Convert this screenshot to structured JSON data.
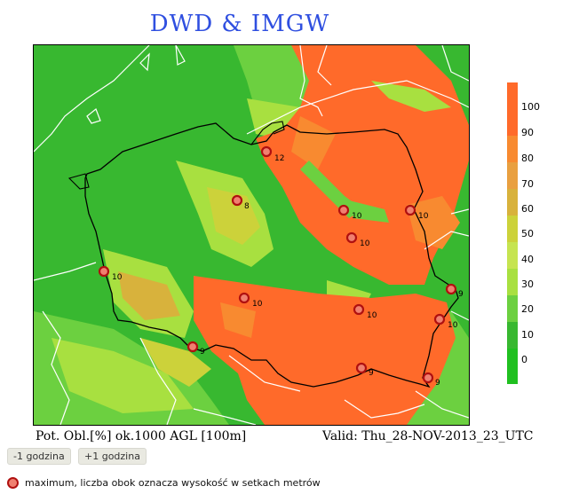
{
  "header": {
    "title": "DWD & IMGW"
  },
  "legend": {
    "ticks": [
      "100",
      "90",
      "80",
      "70",
      "60",
      "50",
      "40",
      "30",
      "20",
      "10",
      "0"
    ],
    "colors": {
      "c100": "#ff6a2a",
      "c90": "#ff6a2a",
      "c80": "#f88a30",
      "c70": "#e9a040",
      "c60": "#d8b23c",
      "c50": "#ccd23a",
      "c40": "#c6e450",
      "c30": "#a8e040",
      "c20": "#6cd040",
      "c10": "#38b830",
      "c0": "#20c020"
    }
  },
  "caption": {
    "left": "Pot. Obl.[%] ok.1000 AGL [100m]",
    "right": "Valid: Thu_28-NOV-2013_23_UTC"
  },
  "controls": {
    "prev_label": "-1 godzina",
    "next_label": "+1 godzina"
  },
  "note": {
    "text": "maximum, liczba obok oznacza wysokość w setkach metrów"
  },
  "map": {
    "maxima": [
      {
        "label": "12"
      },
      {
        "label": "8"
      },
      {
        "label": "10"
      },
      {
        "label": "10"
      },
      {
        "label": "10"
      },
      {
        "label": "10"
      },
      {
        "label": "9"
      },
      {
        "label": "10"
      },
      {
        "label": "10"
      },
      {
        "label": "10"
      },
      {
        "label": "9"
      },
      {
        "label": "9"
      },
      {
        "label": "9"
      }
    ]
  }
}
